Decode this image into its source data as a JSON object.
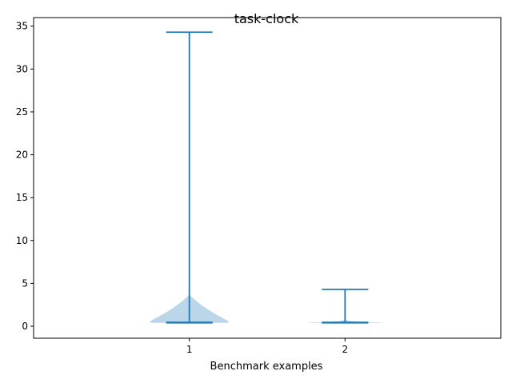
{
  "chart_data": {
    "type": "violin",
    "title": "task-clock",
    "xlabel": "Benchmark examples",
    "ylabel": "",
    "categories": [
      "1",
      "2"
    ],
    "ylim": [
      -1.4,
      36.0
    ],
    "yticks": [
      0,
      5,
      10,
      15,
      20,
      25,
      30,
      35
    ],
    "ytick_labels": [
      "0",
      "5",
      "10",
      "15",
      "20",
      "25",
      "30",
      "35"
    ],
    "grid": false,
    "colors": {
      "violin_fill": "#1f77b4",
      "violin_alpha": 0.3,
      "line": "#1f77b4"
    },
    "series": [
      {
        "category": "1",
        "min": 0.4,
        "max": 34.3,
        "median": 0.45,
        "density_profile": [
          [
            0.4,
            0.5
          ],
          [
            0.6,
            0.5
          ],
          [
            1.0,
            0.42
          ],
          [
            1.6,
            0.3
          ],
          [
            2.3,
            0.18
          ],
          [
            3.0,
            0.08
          ],
          [
            3.5,
            0.02
          ],
          [
            3.8,
            0.0
          ]
        ]
      },
      {
        "category": "2",
        "min": 0.4,
        "max": 4.3,
        "median": 0.45,
        "density_profile": [
          [
            0.4,
            0.5
          ],
          [
            0.45,
            0.45
          ],
          [
            0.5,
            0.22
          ],
          [
            0.6,
            0.07
          ],
          [
            0.7,
            0.02
          ],
          [
            0.8,
            0.0
          ]
        ]
      }
    ]
  }
}
